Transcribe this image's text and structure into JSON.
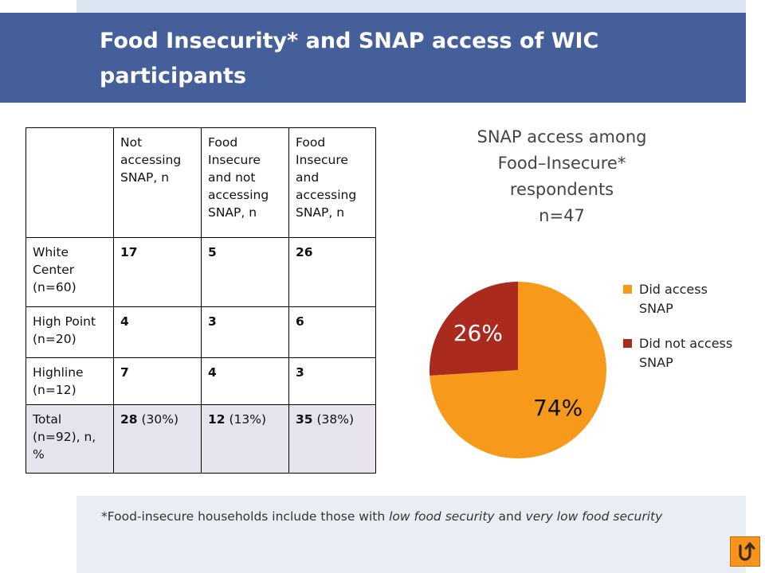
{
  "slide": {
    "title": "Food Insecurity* and SNAP access of WIC participants",
    "footnote": {
      "prefix": "*Food-insecure households include those with ",
      "italic1": "low food security",
      "middle": " and ",
      "italic2": "very low food security"
    }
  },
  "table": {
    "headers": [
      "",
      "Not accessing SNAP, n",
      "Food Insecure and not accessing SNAP, n",
      "Food Insecure and accessing SNAP, n"
    ],
    "rows": [
      {
        "label": "White Center (n=60)",
        "cells": [
          {
            "value": "17",
            "pct": ""
          },
          {
            "value": "5",
            "pct": ""
          },
          {
            "value": "26",
            "pct": ""
          }
        ]
      },
      {
        "label": "High Point (n=20)",
        "cells": [
          {
            "value": "4",
            "pct": ""
          },
          {
            "value": "3",
            "pct": ""
          },
          {
            "value": "6",
            "pct": ""
          }
        ]
      },
      {
        "label": "Highline (n=12)",
        "cells": [
          {
            "value": "7",
            "pct": ""
          },
          {
            "value": "4",
            "pct": ""
          },
          {
            "value": "3",
            "pct": ""
          }
        ]
      },
      {
        "label": "Total (n=92), n, %",
        "cells": [
          {
            "value": "28",
            "pct": " (30%)"
          },
          {
            "value": "12",
            "pct": " (13%)"
          },
          {
            "value": "35",
            "pct": " (38%)"
          }
        ]
      }
    ]
  },
  "chart_data": {
    "type": "pie",
    "title": "SNAP access among Food–Insecure* respondents n=47",
    "title_lines": [
      "SNAP access among",
      "Food–Insecure*",
      "respondents",
      "n=47"
    ],
    "categories": [
      "Did access SNAP",
      "Did not access SNAP"
    ],
    "values": [
      74,
      26
    ],
    "labels": [
      "74%",
      "26%"
    ],
    "colors": [
      "#f79a1c",
      "#aa2a1d"
    ],
    "legend_position": "right"
  },
  "controls": {
    "return_icon": "return-arrow-icon",
    "accent": "#f7941d"
  }
}
